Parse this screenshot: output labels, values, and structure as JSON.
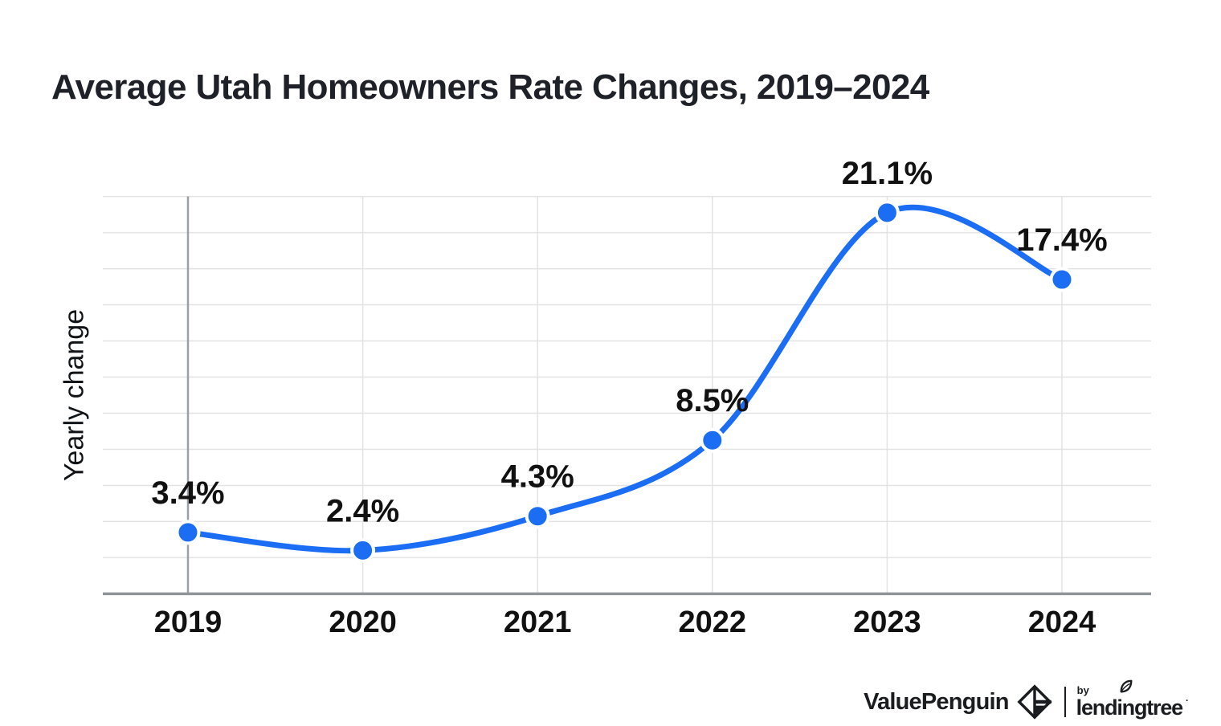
{
  "title": "Average Utah Homeowners Rate Changes, 2019–2024",
  "chart_data": {
    "type": "line",
    "categories": [
      "2019",
      "2020",
      "2021",
      "2022",
      "2023",
      "2024"
    ],
    "values": [
      3.4,
      2.4,
      4.3,
      8.5,
      21.1,
      17.4
    ],
    "point_labels": [
      "3.4%",
      "2.4%",
      "4.3%",
      "8.5%",
      "21.1%",
      "17.4%"
    ],
    "title": "Average Utah Homeowners Rate Changes, 2019–2024",
    "xlabel": "",
    "ylabel": "Yearly change",
    "ylim": [
      0,
      22
    ],
    "grid_step": 2,
    "grid": true,
    "legend": false,
    "smooth": true,
    "colors": {
      "line": "#1b6ef3",
      "point_fill": "#1b6ef3",
      "point_halo": "#ffffff",
      "gridline": "#e3e3e3",
      "first_vertical_gridline": "#9aa0a6",
      "axis_line": "#8f9499",
      "data_label": "#111111",
      "tick_label": "#111111"
    }
  },
  "footer": {
    "brand_primary": "ValuePenguin",
    "brand_by": "by",
    "brand_secondary": "lendingtree",
    "brand_trademark": "·"
  }
}
